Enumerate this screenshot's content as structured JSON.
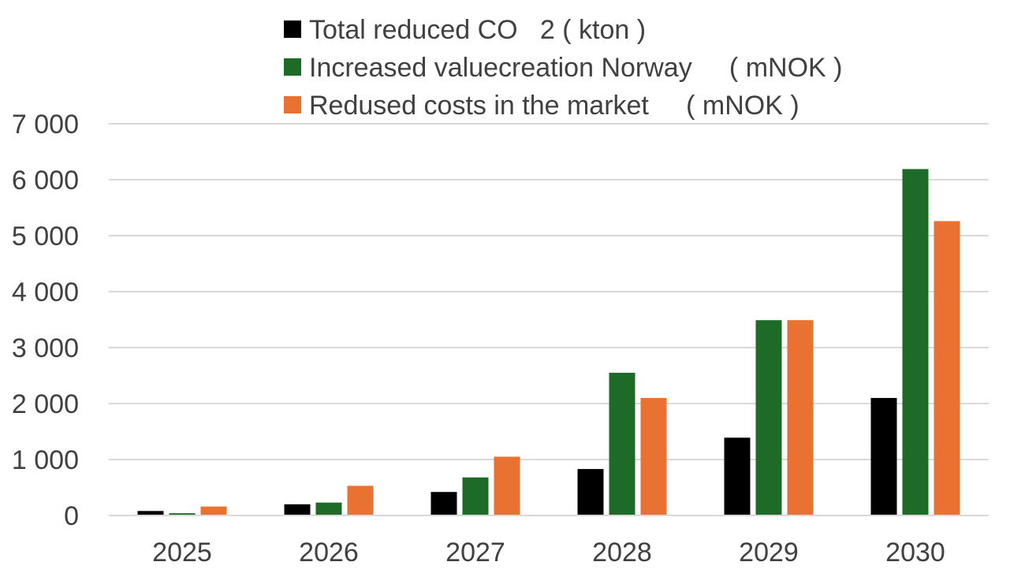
{
  "chart_data": {
    "type": "bar",
    "categories": [
      "2025",
      "2026",
      "2027",
      "2028",
      "2029",
      "2030"
    ],
    "series": [
      {
        "name": "Total reduced CO   2 ( kton )",
        "color": "#000000",
        "values": [
          80,
          200,
          420,
          830,
          1390,
          2100
        ]
      },
      {
        "name": "Increased valuecreation Norway     ( mNOK )",
        "color": "#1e6b28",
        "values": [
          40,
          230,
          680,
          2550,
          3490,
          6190
        ]
      },
      {
        "name": "Redused costs in the market     ( mNOK )",
        "color": "#e97132",
        "values": [
          160,
          530,
          1050,
          2100,
          3490,
          5260
        ]
      }
    ],
    "y_ticks": [
      "0",
      "1 000",
      "2 000",
      "3 000",
      "4 000",
      "5 000",
      "6 000",
      "7 000"
    ],
    "ylim": [
      0,
      7000
    ],
    "grid": true,
    "legend_position": "top-center",
    "gridline_color": "#d9d9d9"
  }
}
